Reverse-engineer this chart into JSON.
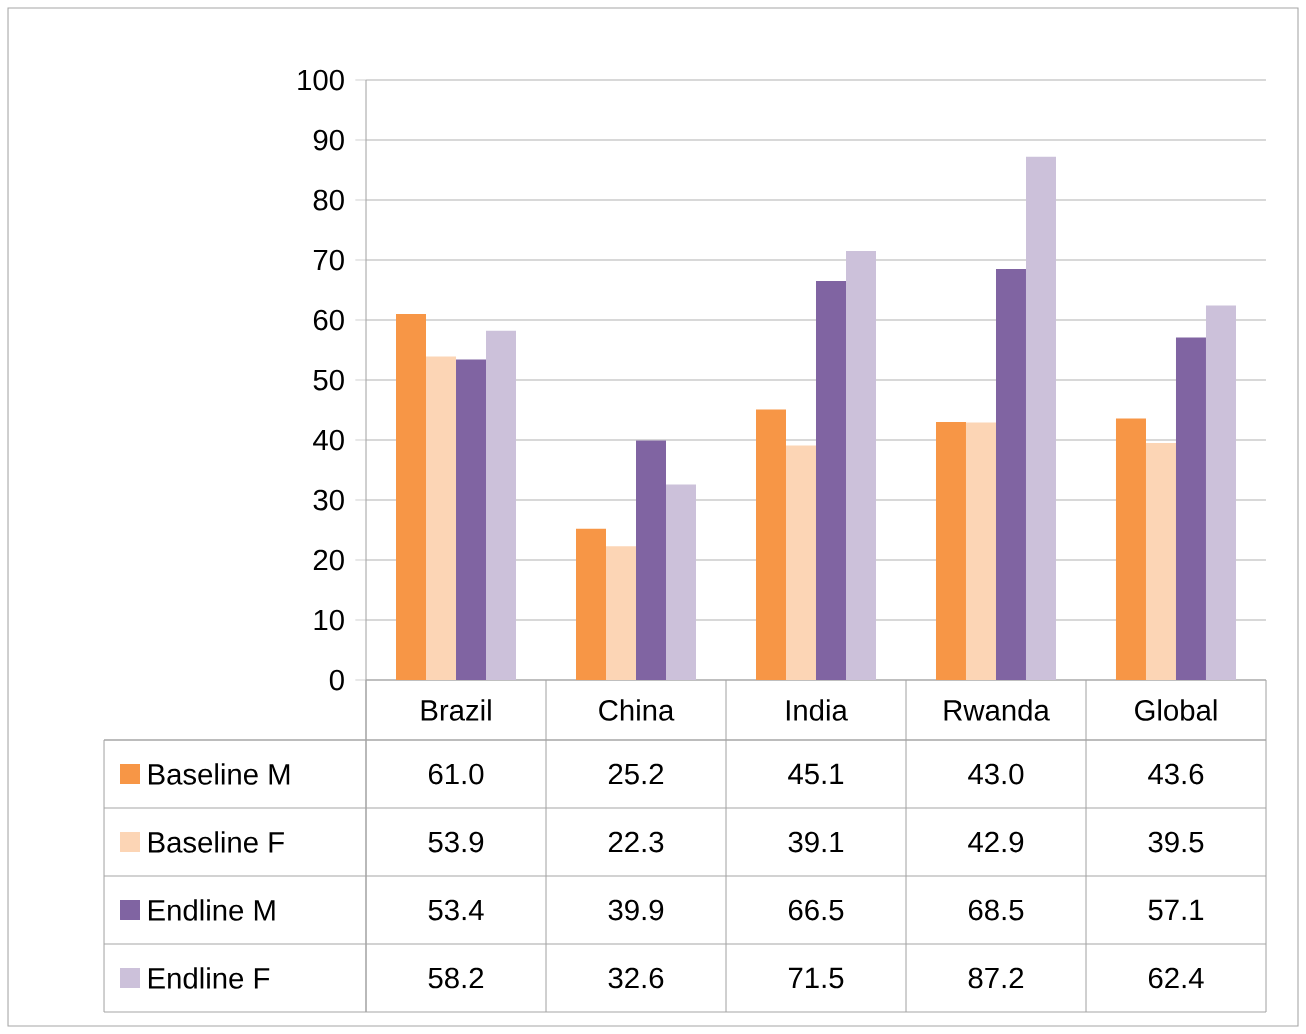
{
  "chart_data": {
    "type": "bar",
    "categories": [
      "Brazil",
      "China",
      "India",
      "Rwanda",
      "Global"
    ],
    "series": [
      {
        "name": "Baseline M",
        "color": "#f79646",
        "values": [
          61.0,
          25.2,
          45.1,
          43.0,
          43.6
        ],
        "value_labels": [
          "61.0",
          "25.2",
          "45.1",
          "43.0",
          "43.6"
        ]
      },
      {
        "name": "Baseline F",
        "color": "#fcd5b5",
        "values": [
          53.9,
          22.3,
          39.1,
          42.9,
          39.5
        ],
        "value_labels": [
          "53.9",
          "22.3",
          "39.1",
          "42.9",
          "39.5"
        ]
      },
      {
        "name": "Endline M",
        "color": "#8064a2",
        "values": [
          53.4,
          39.9,
          66.5,
          68.5,
          57.1
        ],
        "value_labels": [
          "53.4",
          "39.9",
          "66.5",
          "68.5",
          "57.1"
        ]
      },
      {
        "name": "Endline F",
        "color": "#ccc1da",
        "values": [
          58.2,
          32.6,
          71.5,
          87.2,
          62.4
        ],
        "value_labels": [
          "58.2",
          "32.6",
          "71.5",
          "87.2",
          "62.4"
        ]
      }
    ],
    "ylim": [
      0,
      100
    ],
    "yticks": [
      0,
      10,
      20,
      30,
      40,
      50,
      60,
      70,
      80,
      90,
      100
    ],
    "grid": "y",
    "legend": "bottom"
  }
}
